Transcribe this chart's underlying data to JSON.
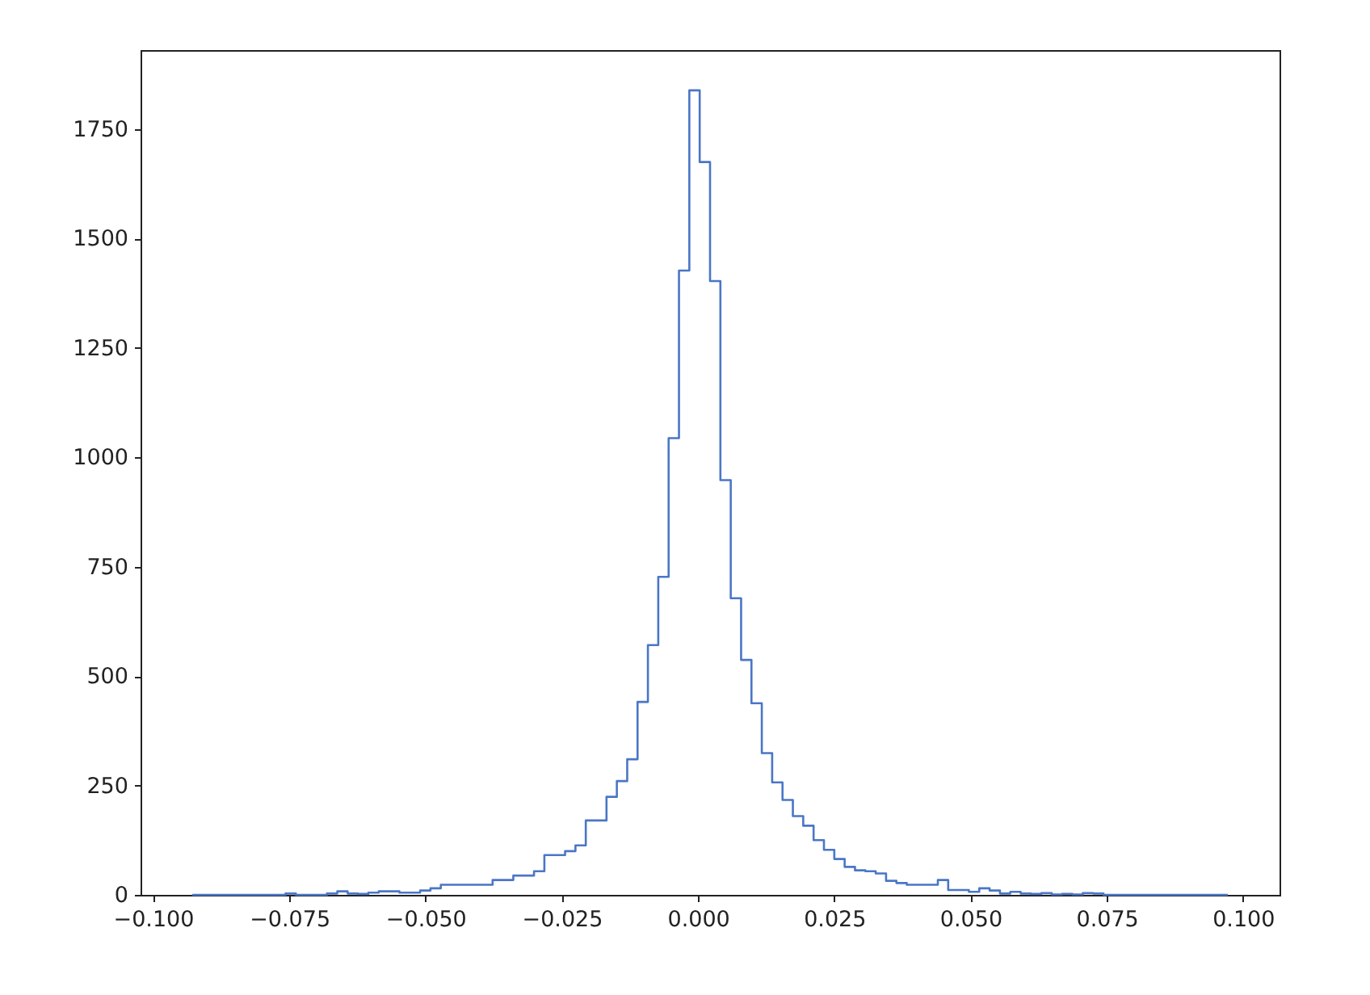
{
  "chart_data": {
    "type": "histogram",
    "color": "#4a76c6",
    "grid": false,
    "line_style": "solid",
    "bins": [
      -0.0928,
      -0.0909,
      -0.089,
      -0.0871,
      -0.0852,
      -0.0833,
      -0.0814,
      -0.0795,
      -0.0776,
      -0.0757,
      -0.0738,
      -0.0719,
      -0.07,
      -0.0681,
      -0.0662,
      -0.0643,
      -0.0624,
      -0.0605,
      -0.0586,
      -0.0567,
      -0.0548,
      -0.0529,
      -0.051,
      -0.0491,
      -0.0472,
      -0.0453,
      -0.0434,
      -0.0415,
      -0.0396,
      -0.0377,
      -0.0358,
      -0.0339,
      -0.032,
      -0.0301,
      -0.0282,
      -0.0263,
      -0.0244,
      -0.0225,
      -0.0206,
      -0.0187,
      -0.0168,
      -0.0149,
      -0.013,
      -0.0111,
      -0.0092,
      -0.0073,
      -0.0054,
      -0.0035,
      -0.0016,
      0.0003,
      0.0022,
      0.0041,
      0.006,
      0.0079,
      0.0098,
      0.0117,
      0.0136,
      0.0155,
      0.0174,
      0.0193,
      0.0212,
      0.0231,
      0.025,
      0.0269,
      0.0288,
      0.0307,
      0.0326,
      0.0345,
      0.0364,
      0.0383,
      0.0402,
      0.0421,
      0.044,
      0.0459,
      0.0478,
      0.0497,
      0.0516,
      0.0535,
      0.0554,
      0.0573,
      0.0592,
      0.0611,
      0.063,
      0.0649,
      0.0668,
      0.0687,
      0.0706,
      0.0725,
      0.0744,
      0.0763,
      0.0782,
      0.0801,
      0.082,
      0.0839,
      0.0858,
      0.0877,
      0.0896,
      0.0915,
      0.0934,
      0.0953,
      0.0972
    ],
    "values": [
      0,
      0,
      0,
      0,
      0,
      0,
      0,
      0,
      0,
      3,
      0,
      0,
      0,
      3,
      8,
      3,
      2,
      5,
      8,
      8,
      5,
      5,
      10,
      15,
      23,
      23,
      23,
      23,
      23,
      34,
      34,
      44,
      44,
      54,
      91,
      91,
      100,
      113,
      170,
      170,
      224,
      260,
      310,
      441,
      571,
      727,
      1044,
      1427,
      1839,
      1675,
      1403,
      948,
      678,
      537,
      438,
      324,
      257,
      217,
      180,
      158,
      125,
      103,
      82,
      64,
      56,
      54,
      49,
      32,
      27,
      23,
      23,
      23,
      34,
      11,
      11,
      7,
      15,
      10,
      3,
      7,
      3,
      2,
      4,
      1,
      2,
      1,
      4,
      3,
      0,
      0,
      0,
      0,
      0,
      0,
      0,
      0,
      0,
      0,
      0,
      0
    ],
    "xlim": [
      -0.1023,
      0.1067
    ],
    "ylim": [
      0,
      1931
    ],
    "xticks": [
      {
        "value": -0.1,
        "label": "−0.100"
      },
      {
        "value": -0.075,
        "label": "−0.075"
      },
      {
        "value": -0.05,
        "label": "−0.050"
      },
      {
        "value": -0.025,
        "label": "−0.025"
      },
      {
        "value": 0,
        "label": "0.000"
      },
      {
        "value": 0.025,
        "label": "0.025"
      },
      {
        "value": 0.05,
        "label": "0.050"
      },
      {
        "value": 0.075,
        "label": "0.075"
      },
      {
        "value": 0.1,
        "label": "0.100"
      }
    ],
    "yticks": [
      0,
      250,
      500,
      750,
      1000,
      1250,
      1500,
      1750
    ]
  }
}
